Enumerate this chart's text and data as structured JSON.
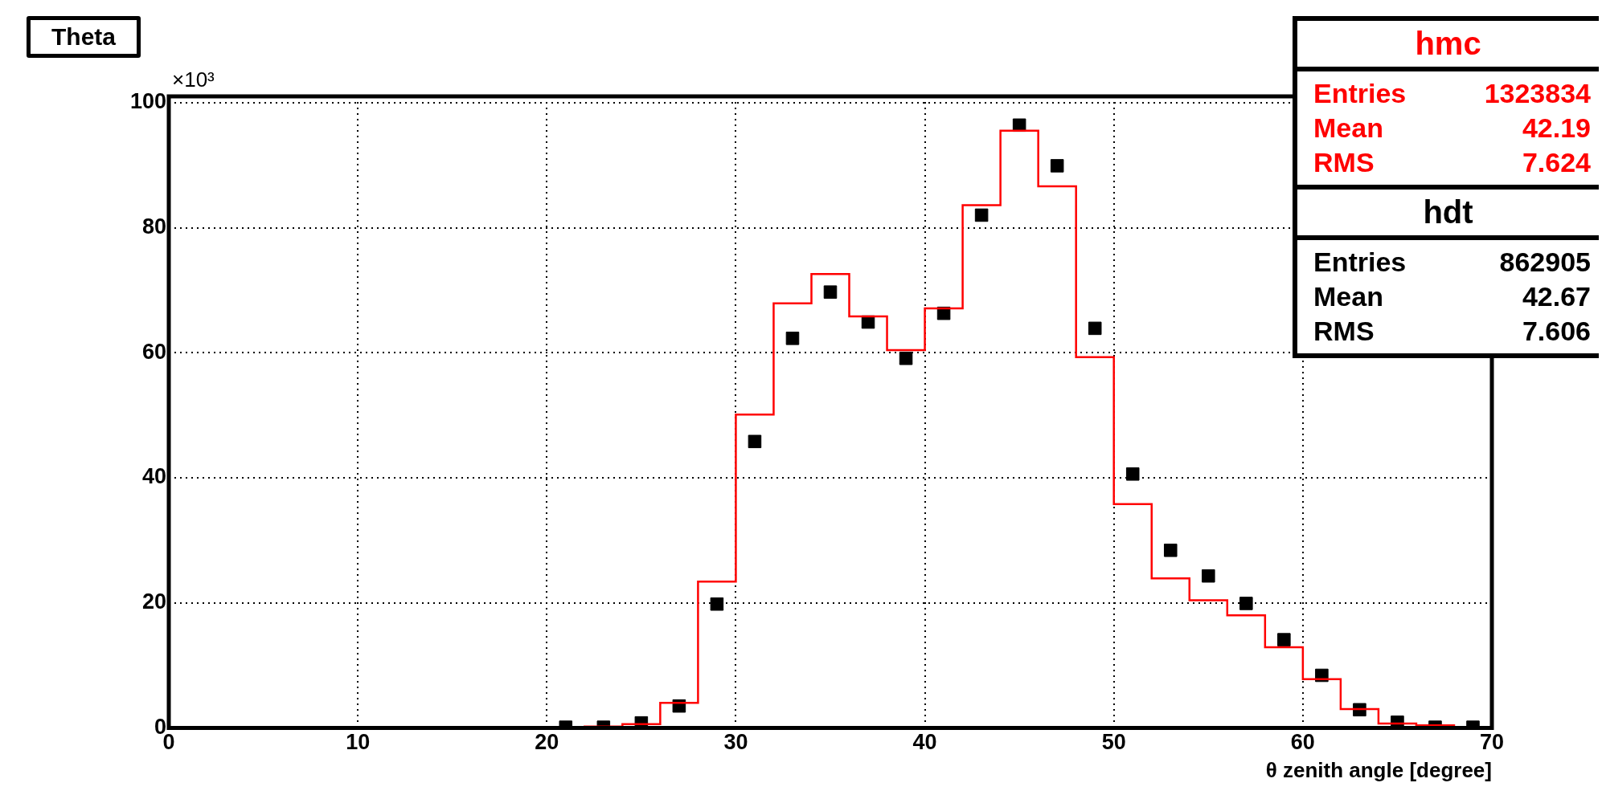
{
  "chart_data": {
    "type": "histogram",
    "title": "Theta",
    "xlabel": "θ zenith angle [degree]",
    "bins": [
      0,
      2,
      4,
      6,
      8,
      10,
      12,
      14,
      16,
      18,
      20,
      22,
      24,
      26,
      28,
      30,
      32,
      34,
      36,
      38,
      40,
      42,
      44,
      46,
      48,
      50,
      52,
      54,
      56,
      58,
      60,
      62,
      64,
      66,
      68,
      70
    ],
    "series": [
      {
        "name": "hmc",
        "color": "#ff0000",
        "values": [
          0,
          0,
          0,
          0,
          0,
          0,
          0,
          0,
          0,
          0,
          0.1,
          0.2,
          0.6,
          4.0,
          23.4,
          50.1,
          67.9,
          72.6,
          65.8,
          60.4,
          67.1,
          83.6,
          95.5,
          86.6,
          59.3,
          35.8,
          23.9,
          20.4,
          18.0,
          12.9,
          7.8,
          3.0,
          0.7,
          0.4,
          0.1
        ]
      },
      {
        "name": "hdt",
        "type": "scatter",
        "color": "#000000",
        "marker": "square",
        "x": [
          21,
          23,
          25,
          27,
          29,
          31,
          33,
          35,
          37,
          39,
          41,
          43,
          45,
          47,
          49,
          51,
          53,
          55,
          57,
          59,
          61,
          63,
          65,
          67,
          69
        ],
        "values": [
          0.1,
          0.1,
          0.8,
          3.5,
          19.8,
          45.8,
          62.3,
          69.7,
          64.9,
          59.1,
          66.3,
          82.0,
          96.4,
          89.9,
          63.9,
          40.6,
          28.4,
          24.3,
          19.9,
          14.1,
          8.4,
          2.9,
          0.9,
          0.1,
          0.1
        ]
      }
    ],
    "xlim": [
      0,
      70
    ],
    "xticks": [
      0,
      10,
      20,
      30,
      40,
      50,
      60,
      70
    ],
    "ylim": [
      0,
      101
    ],
    "yticks": [
      0,
      20,
      40,
      60,
      80,
      100
    ],
    "grid": true,
    "legend": "top right",
    "annotations": [
      "×10³",
      "Entries",
      "1323834",
      "Mean",
      "42.19",
      "RMS",
      "7.624",
      "Entries",
      "862905",
      "Mean",
      "42.67",
      "RMS",
      "7.606"
    ]
  }
}
